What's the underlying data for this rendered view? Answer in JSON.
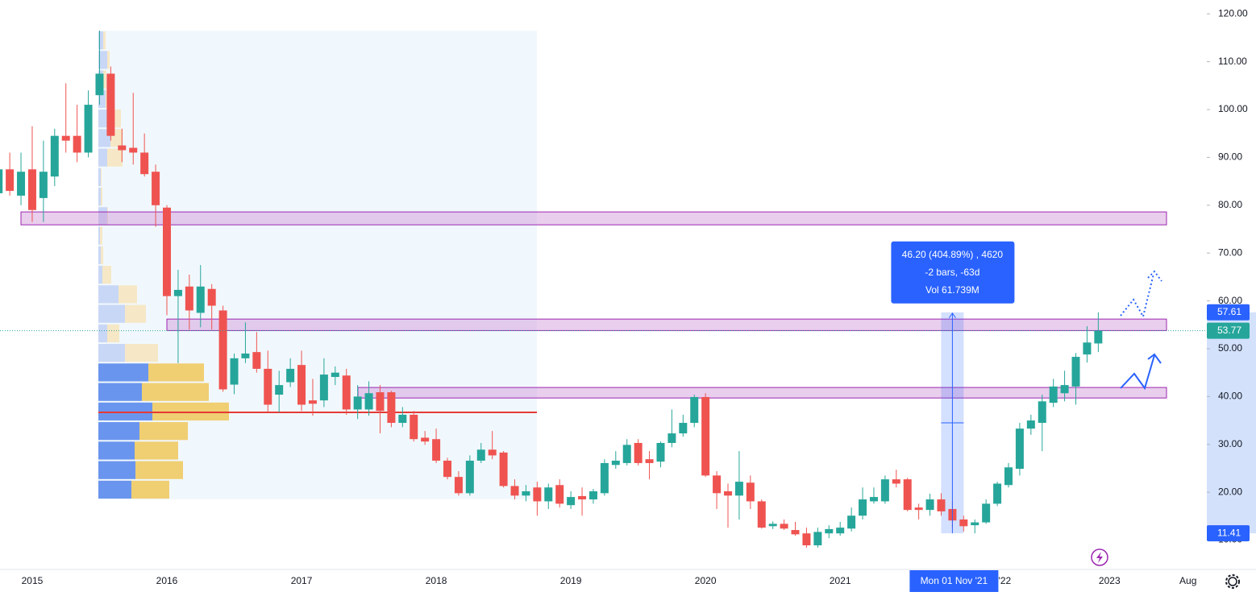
{
  "chart_data": {
    "type": "candlestick",
    "categories": [
      null,
      null,
      null,
      "2015",
      null,
      null,
      null,
      null,
      null,
      null,
      null,
      null,
      null,
      null,
      null,
      "2016",
      null,
      null,
      null,
      null,
      null,
      null,
      null,
      null,
      null,
      null,
      null,
      "2017",
      null,
      null,
      null,
      null,
      null,
      null,
      null,
      null,
      null,
      null,
      null,
      "2018",
      null,
      null,
      null,
      null,
      null,
      null,
      null,
      null,
      null,
      null,
      null,
      "2019",
      null,
      null,
      null,
      null,
      null,
      null,
      null,
      null,
      null,
      null,
      null,
      "2020",
      null,
      null,
      null,
      null,
      null,
      null,
      null,
      null,
      null,
      null,
      null,
      "2021",
      null,
      null,
      null,
      null,
      null,
      null,
      null,
      null,
      null,
      null,
      null,
      "'22",
      null,
      null,
      null,
      null,
      null,
      null,
      null,
      null,
      null,
      null,
      null,
      "2023",
      null,
      null,
      null,
      null,
      null,
      null,
      "Aug",
      null
    ],
    "open": [
      82.5,
      87.5,
      82,
      87.5,
      81.5,
      86,
      94.5,
      94.5,
      91,
      103,
      107.5,
      92.5,
      92,
      91,
      87,
      79.5,
      61,
      63,
      57.5,
      62.5,
      58,
      42.5,
      48,
      49.3,
      45.8,
      40.4,
      43,
      46.6,
      39.2,
      39.2,
      44.1,
      44.4,
      37.3,
      37.3,
      40.9,
      40.9,
      34.5,
      36.2,
      31.4,
      31.1,
      26.6,
      23.2,
      19.8,
      26.6,
      28.9,
      28.3,
      21.3,
      19.3,
      21,
      18.1,
      21.5,
      17.3,
      19.2,
      18.5,
      19.8,
      25.7,
      26.1,
      30.3,
      26.9,
      26.4,
      30.3,
      32.3,
      34.5,
      39.9,
      23.5,
      20.2,
      19.3,
      22,
      18.1,
      12.9,
      13.4,
      12.1,
      11.4,
      8.9,
      11.4,
      11.4,
      12.4,
      15.1,
      18.1,
      18.1,
      22.7,
      22.7,
      16.8,
      16.3,
      18.5,
      16.5,
      14.3,
      13.1,
      13.7,
      17.6,
      21.5,
      24.9,
      33.3,
      34.5,
      38.7,
      40.7,
      42.1,
      48.8,
      51.1,
      null,
      null,
      null,
      null,
      null,
      null,
      null,
      null,
      null
    ],
    "high": [
      89,
      91,
      91,
      96.5,
      93.5,
      96,
      105.5,
      101,
      104,
      116.5,
      109,
      96,
      103.5,
      95,
      88.5,
      80,
      66.5,
      65.5,
      67.5,
      63.5,
      59,
      49,
      55.5,
      53.5,
      49.6,
      45.4,
      48,
      49.6,
      43.7,
      48,
      46.3,
      45.8,
      42.4,
      43.2,
      42.4,
      41.2,
      37.8,
      37,
      32.8,
      33.3,
      27.2,
      24.4,
      27.7,
      30.3,
      32.8,
      28.6,
      22.7,
      21.5,
      22.2,
      21.8,
      22.7,
      20.2,
      21,
      20.7,
      26.9,
      28.6,
      31.1,
      31.1,
      28.6,
      30.6,
      37.3,
      36.2,
      40.4,
      40.7,
      24.4,
      21.8,
      28.6,
      23.5,
      18.5,
      13.9,
      14.3,
      13.8,
      12.6,
      12.6,
      13.1,
      13.8,
      16.8,
      21,
      21,
      23.5,
      24.7,
      23,
      17.6,
      19.7,
      19.8,
      18.1,
      15.1,
      14.3,
      18.5,
      22.2,
      26.1,
      34.5,
      36.2,
      40.4,
      43.7,
      45.4,
      49.1,
      54.7,
      57.61,
      null,
      null,
      null,
      null,
      null,
      null,
      null,
      null,
      null
    ],
    "low": [
      81,
      82,
      80,
      76.5,
      76.5,
      84,
      91,
      89,
      90,
      101,
      93.5,
      89,
      88.5,
      86,
      75.5,
      57,
      47,
      54,
      54.5,
      54,
      41,
      40.5,
      47,
      45,
      36.7,
      36.7,
      42,
      37,
      36,
      37.8,
      42.4,
      36.2,
      35.3,
      36,
      32.3,
      33.6,
      33.6,
      30.6,
      29.9,
      26.1,
      22.7,
      19.3,
      19.3,
      26.1,
      26.9,
      21,
      18.5,
      18.1,
      15.1,
      16.5,
      16.8,
      16.5,
      15.1,
      17.6,
      19.3,
      24.9,
      25.6,
      25.6,
      22.7,
      25.2,
      29.4,
      31.6,
      33.6,
      23.2,
      16.5,
      12.6,
      14.3,
      16.5,
      12.4,
      12.3,
      12.1,
      10.9,
      8.4,
      8.4,
      10.4,
      10.9,
      11.8,
      14.3,
      17.6,
      17.6,
      21,
      16,
      14.3,
      15.1,
      15.1,
      12.6,
      11.8,
      11.41,
      13.4,
      17.1,
      21,
      23.5,
      32,
      28.6,
      37.8,
      39,
      38.3,
      47.1,
      49.3,
      null,
      null,
      null,
      null,
      null,
      null,
      null,
      null,
      null
    ],
    "close": [
      87.5,
      83,
      87,
      79,
      87,
      94.5,
      93.5,
      91,
      101,
      107.5,
      94.5,
      91.5,
      91,
      86.5,
      80,
      61,
      62.3,
      58,
      63,
      59,
      41.5,
      48,
      49,
      45.8,
      38.3,
      42.4,
      45.8,
      38.3,
      38.5,
      44.6,
      45,
      37.3,
      40,
      40.7,
      37,
      34.5,
      36.2,
      31.1,
      30.6,
      26.6,
      23.2,
      19.8,
      26.6,
      28.9,
      27.7,
      21.3,
      19.3,
      20.2,
      18.1,
      21,
      17.6,
      19,
      18.5,
      20.2,
      26.1,
      26.6,
      29.9,
      26.1,
      26.1,
      30.3,
      32.3,
      34.5,
      39.9,
      23.5,
      19.8,
      19.3,
      22.2,
      18.1,
      12.6,
      13.4,
      12.4,
      11.2,
      8.9,
      11.7,
      12.3,
      12.6,
      15.1,
      18.5,
      19,
      22.7,
      21.8,
      16.3,
      16.3,
      18.5,
      16,
      14.1,
      12.9,
      13.7,
      17.6,
      21.8,
      25.2,
      33.3,
      35,
      39,
      42.1,
      42.4,
      48.3,
      51.3,
      53.77,
      null,
      null,
      null,
      null,
      null,
      null,
      null,
      null,
      null
    ],
    "up_color": "#26a69a",
    "down_color": "#ef5350",
    "ylim": [
      4.2,
      122.9
    ],
    "yticks": [
      {
        "value": 10,
        "label": "10.00"
      },
      {
        "value": 20,
        "label": "20.00"
      },
      {
        "value": 30,
        "label": "30.00"
      },
      {
        "value": 40,
        "label": "40.00"
      },
      {
        "value": 50,
        "label": "50.00"
      },
      {
        "value": 60,
        "label": "60.00"
      },
      {
        "value": 70,
        "label": "70.00"
      },
      {
        "value": 80,
        "label": "80.00"
      },
      {
        "value": 90,
        "label": "90.00"
      },
      {
        "value": 100,
        "label": "100.00"
      },
      {
        "value": 110,
        "label": "110.00"
      },
      {
        "value": 120,
        "label": "120.00"
      }
    ],
    "zones": [
      {
        "low": 75.9,
        "high": 78.6
      },
      {
        "low": 53.8,
        "high": 56.2
      },
      {
        "low": 39.7,
        "high": 41.9
      }
    ],
    "volume_profile": {
      "low": 18.5,
      "high": 116.5,
      "up": [
        41,
        46,
        45,
        51,
        67,
        54,
        62,
        33,
        11,
        33,
        25,
        5,
        3,
        2,
        11,
        3,
        3,
        11,
        15,
        13,
        9,
        6,
        11,
        6
      ],
      "down": [
        47,
        59,
        54,
        60,
        95,
        83,
        69,
        41,
        15,
        26,
        23,
        11,
        3,
        3,
        1,
        2,
        1,
        19,
        15,
        15,
        9,
        4,
        3,
        3
      ],
      "value_area": [
        18.5,
        47.1
      ],
      "poc": 36.7
    },
    "measure": {
      "high": 57.61,
      "low": 11.41,
      "lines": [
        "46.20 (404.89%) , 4620",
        "-2 bars, -63d",
        "Vol 61.739M"
      ]
    },
    "crosshair_label": "Mon 01 Nov '21"
  }
}
